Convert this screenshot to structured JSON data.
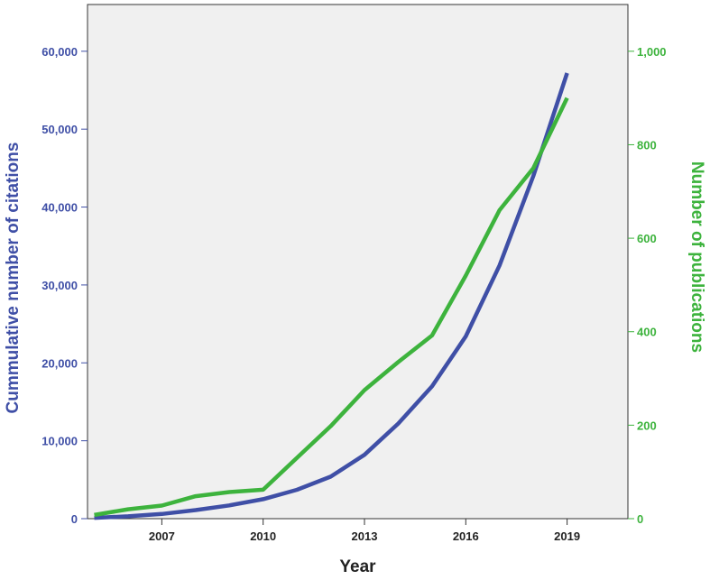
{
  "chart_data": {
    "type": "line",
    "xlabel": "Year",
    "ylabel_left": "Cummulative number of citations",
    "ylabel_right": "Number of publications",
    "xlim": [
      2004.8,
      2020.8
    ],
    "x_ticks": [
      2007,
      2010,
      2013,
      2016,
      2019
    ],
    "ylim_left": [
      0,
      66000
    ],
    "ylim_right": [
      0,
      1100
    ],
    "y_ticks_left": [
      "0",
      "10,000",
      "20,000",
      "30,000",
      "40,000",
      "50,000",
      "60,000"
    ],
    "y_ticks_right": [
      "0",
      "200",
      "400",
      "600",
      "800",
      "1,000"
    ],
    "y_tick_values_left": [
      0,
      10000,
      20000,
      30000,
      40000,
      50000,
      60000
    ],
    "y_tick_values_right": [
      0,
      200,
      400,
      600,
      800,
      1000
    ],
    "grid": false,
    "background": "#f0f0f0",
    "series": [
      {
        "axis": "left",
        "color": "#3f4fa6",
        "x": [
          2005,
          2006,
          2007,
          2008,
          2009,
          2010,
          2011,
          2012,
          2013,
          2014,
          2015,
          2016,
          2017,
          2018,
          2019
        ],
        "values": [
          100,
          300,
          600,
          1100,
          1700,
          2500,
          3700,
          5400,
          8200,
          12200,
          17000,
          23400,
          32500,
          44000,
          57200
        ]
      },
      {
        "axis": "right",
        "color": "#3db33d",
        "x": [
          2005,
          2006,
          2007,
          2008,
          2009,
          2010,
          2011,
          2012,
          2013,
          2014,
          2015,
          2016,
          2017,
          2018,
          2019
        ],
        "values": [
          8,
          20,
          28,
          48,
          57,
          62,
          130,
          198,
          275,
          335,
          392,
          520,
          660,
          750,
          900
        ]
      }
    ]
  }
}
